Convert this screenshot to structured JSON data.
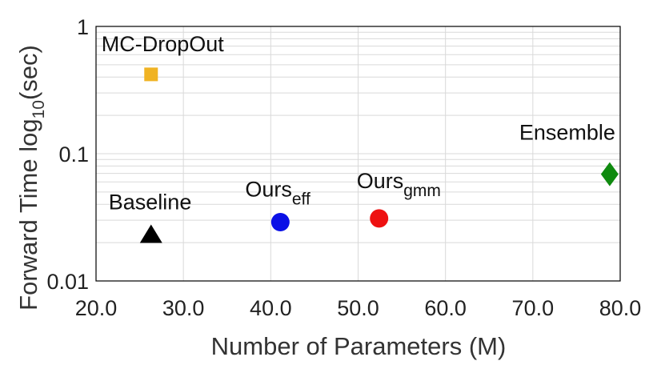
{
  "chart_data": {
    "type": "scatter",
    "xlabel": "Number of Parameters (M)",
    "ylabel": {
      "main": "Forward Time  log",
      "sub": "10",
      "tail": "(sec)"
    },
    "xlim": [
      20,
      80
    ],
    "ylim": [
      0.01,
      1
    ],
    "x_scale": "linear",
    "y_scale": "log",
    "grid": true,
    "x_ticks": [
      20,
      30,
      40,
      50,
      60,
      70,
      80
    ],
    "x_tick_labels": [
      "20.0",
      "30.0",
      "40.0",
      "50.0",
      "60.0",
      "70.0",
      "80.0"
    ],
    "y_ticks": [
      0.01,
      0.1,
      1
    ],
    "y_tick_labels": [
      "0.01",
      "0.1",
      "1"
    ],
    "points": [
      {
        "label": "MC-DropOut",
        "sub": "",
        "x": 26.3,
        "y": 0.42,
        "marker": "square",
        "color": "#f0b323"
      },
      {
        "label": "Baseline",
        "sub": "",
        "x": 26.3,
        "y": 0.023,
        "marker": "triangle",
        "color": "#000000"
      },
      {
        "label": "Ours",
        "sub": "eff",
        "x": 41.1,
        "y": 0.029,
        "marker": "circle",
        "color": "#0a10e6"
      },
      {
        "label": "Ours",
        "sub": "gmm",
        "x": 52.4,
        "y": 0.031,
        "marker": "circle",
        "color": "#ee1111"
      },
      {
        "label": "Ensemble",
        "sub": "",
        "x": 78.8,
        "y": 0.069,
        "marker": "diamond",
        "color": "#0f8a0f"
      }
    ]
  }
}
